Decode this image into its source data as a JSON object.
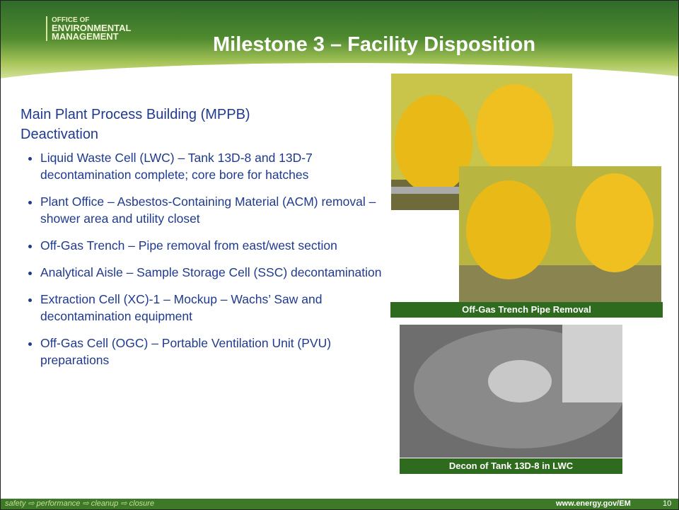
{
  "header": {
    "logo": [
      "OFFICE OF",
      "ENVIRONMENTAL",
      "MANAGEMENT"
    ],
    "title": "Milestone 3 – Facility Disposition"
  },
  "content": {
    "heading": "Main Plant Process Building (MPPB) Deactivation",
    "bullets": [
      "Liquid Waste Cell (LWC) – Tank 13D-8 and 13D-7 decontamination complete; core bore for hatches",
      "Plant Office – Asbestos-Containing Material (ACM) removal – shower area and utility closet",
      "Off-Gas Trench – Pipe removal from east/west section",
      "Analytical Aisle – Sample Storage Cell (SSC) decontamination",
      "Extraction Cell (XC)-1 – Mockup – Wachs’ Saw and decontamination equipment",
      "Off-Gas Cell (OGC) – Portable Ventilation Unit (PVU) preparations"
    ]
  },
  "figures": [
    {
      "caption": "Off-Gas Trench Pipe Removal"
    },
    {
      "caption": "Decon of Tank 13D-8 in LWC"
    }
  ],
  "footer": {
    "slogan": "safety ⇨ performance ⇨ cleanup ⇨ closure",
    "url": "www.energy.gov/EM",
    "page": "10"
  }
}
